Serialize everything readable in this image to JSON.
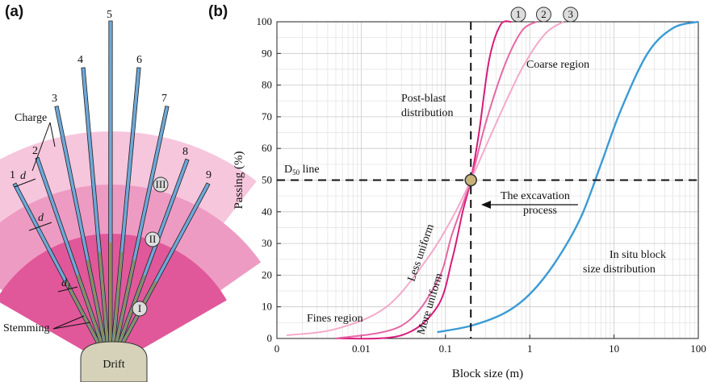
{
  "panel_a": {
    "label": "(a)",
    "hole_numbers": [
      "1",
      "2",
      "3",
      "4",
      "5",
      "6",
      "7",
      "8",
      "9"
    ],
    "zone_labels": [
      "I",
      "II",
      "III"
    ],
    "charge_label": "Charge",
    "stemming_label": "Stemming",
    "spacing_label": "d",
    "spacing_sub": "1",
    "drift_label": "Drift",
    "colors": {
      "charge": "#6ea8d8",
      "zone_inner": "#e0589a",
      "zone_mid": "#ee9bc3",
      "zone_outer": "#f6c6dc",
      "stemming": "#8c8c5a",
      "drift": "#d6d2b9"
    }
  },
  "panel_b": {
    "label": "(b)",
    "curve_markers": [
      "1",
      "2",
      "3"
    ],
    "annotations": {
      "coarse": "Coarse region",
      "fines": "Fines region",
      "post_blast_1": "Post-blast",
      "post_blast_2": "distribution",
      "d50_main": "D",
      "d50_sub": "50",
      "d50_rest": " line",
      "excavation_1": "The excavation",
      "excavation_2": "process",
      "insitu_1": "In situ block",
      "insitu_2": "size distribution",
      "less_uniform": "Less uniform",
      "more_uniform": "More uniform"
    }
  },
  "chart_data": {
    "type": "line",
    "xlabel": "Block size (m)",
    "ylabel": "Passing (%)",
    "xscale": "log",
    "xlim": [
      0.001,
      100
    ],
    "ylim": [
      0,
      100
    ],
    "x_ticks": [
      "0",
      "0.01",
      "0.1",
      "1",
      "10",
      "100"
    ],
    "y_ticks": [
      "0",
      "10",
      "20",
      "30",
      "40",
      "50",
      "60",
      "70",
      "80",
      "90",
      "100"
    ],
    "grid": true,
    "d50_point": {
      "x": 0.2,
      "y": 50
    },
    "series": [
      {
        "name": "1",
        "color": "#d81b7a",
        "x": [
          0.005,
          0.03,
          0.08,
          0.12,
          0.16,
          0.2,
          0.25,
          0.33,
          0.45,
          0.6
        ],
        "y": [
          0,
          1,
          10,
          25,
          40,
          50,
          65,
          88,
          99,
          100
        ]
      },
      {
        "name": "2",
        "color": "#e667a5",
        "x": [
          0.005,
          0.03,
          0.08,
          0.12,
          0.2,
          0.3,
          0.5,
          0.8,
          1.2
        ],
        "y": [
          0,
          4,
          18,
          33,
          50,
          68,
          86,
          97,
          100
        ]
      },
      {
        "name": "3",
        "color": "#f4a9cb",
        "x": [
          0.0013,
          0.005,
          0.02,
          0.06,
          0.12,
          0.2,
          0.4,
          0.8,
          1.5,
          2.5
        ],
        "y": [
          1,
          3,
          10,
          25,
          38,
          50,
          68,
          85,
          96,
          100
        ]
      },
      {
        "name": "In situ block size distribution",
        "color": "#3a9bd5",
        "x": [
          0.08,
          0.2,
          0.5,
          1,
          2,
          4,
          7,
          12,
          25,
          50,
          100
        ],
        "y": [
          2,
          4,
          8,
          14,
          24,
          38,
          55,
          72,
          90,
          98,
          100
        ]
      }
    ]
  }
}
